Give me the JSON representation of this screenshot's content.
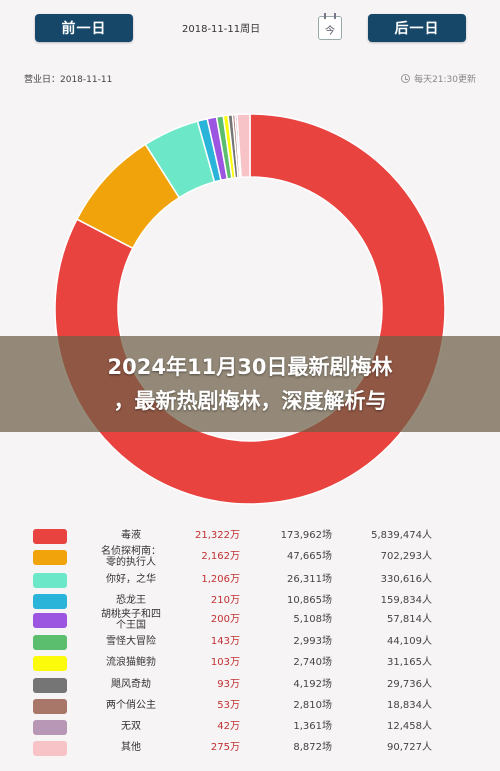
{
  "header": {
    "prev_label": "前一日",
    "next_label": "后一日",
    "current_date": "2018-11-11周日",
    "calendar_icon_text": "今"
  },
  "subheader": {
    "business_date": "营业日：2018-11-11",
    "update_time": "每天21:30更新"
  },
  "headline": {
    "line1": "2024年11月30日最新剧梅林",
    "line2": "，最新热剧梅林，深度解析与"
  },
  "chart_data": {
    "type": "pie",
    "donut": true,
    "start": "top",
    "direction": "clockwise",
    "categories": [
      "毒液",
      "名侦探柯南：零的执行人",
      "你好，之华",
      "恐龙王",
      "胡桃夹子和四个王国",
      "雪怪大冒险",
      "流浪猫鲍勃",
      "飓风奇劫",
      "两个俏公主",
      "无双",
      "其他"
    ],
    "values": [
      21322,
      2162,
      1206,
      210,
      200,
      143,
      103,
      93,
      53,
      42,
      275
    ],
    "unit": "万",
    "colors": [
      "#e8433f",
      "#f0a30a",
      "#6ce8c8",
      "#2bb4d9",
      "#9b55e0",
      "#5bbd6e",
      "#fbfb0a",
      "#757575",
      "#a8776a",
      "#b896b6",
      "#f7c3c7"
    ]
  },
  "legend": {
    "rows": [
      {
        "name": "毒液",
        "name_l1": "毒液",
        "name_l2": "",
        "box_office": "21,322万",
        "shows": "173,962场",
        "people": "5,839,474人",
        "color": "#e8433f"
      },
      {
        "name": "名侦探柯南：零的执行人",
        "name_l1": "名侦探柯南：",
        "name_l2": "零的执行人",
        "box_office": "2,162万",
        "shows": "47,665场",
        "people": "702,293人",
        "color": "#f0a30a"
      },
      {
        "name": "你好，之华",
        "name_l1": "你好，之华",
        "name_l2": "",
        "box_office": "1,206万",
        "shows": "26,311场",
        "people": "330,616人",
        "color": "#6ce8c8"
      },
      {
        "name": "恐龙王",
        "name_l1": "恐龙王",
        "name_l2": "",
        "box_office": "210万",
        "shows": "10,865场",
        "people": "159,834人",
        "color": "#2bb4d9"
      },
      {
        "name": "胡桃夹子和四个王国",
        "name_l1": "胡桃夹子和四",
        "name_l2": "个王国",
        "box_office": "200万",
        "shows": "5,108场",
        "people": "57,814人",
        "color": "#9b55e0"
      },
      {
        "name": "雪怪大冒险",
        "name_l1": "雪怪大冒险",
        "name_l2": "",
        "box_office": "143万",
        "shows": "2,993场",
        "people": "44,109人",
        "color": "#5bbd6e"
      },
      {
        "name": "流浪猫鲍勃",
        "name_l1": "流浪猫鲍勃",
        "name_l2": "",
        "box_office": "103万",
        "shows": "2,740场",
        "people": "31,165人",
        "color": "#fbfb0a"
      },
      {
        "name": "飓风奇劫",
        "name_l1": "飓风奇劫",
        "name_l2": "",
        "box_office": "93万",
        "shows": "4,192场",
        "people": "29,736人",
        "color": "#757575"
      },
      {
        "name": "两个俏公主",
        "name_l1": "两个俏公主",
        "name_l2": "",
        "box_office": "53万",
        "shows": "2,810场",
        "people": "18,834人",
        "color": "#a8776a"
      },
      {
        "name": "无双",
        "name_l1": "无双",
        "name_l2": "",
        "box_office": "42万",
        "shows": "1,361场",
        "people": "12,458人",
        "color": "#b896b6"
      },
      {
        "name": "其他",
        "name_l1": "其他",
        "name_l2": "",
        "box_office": "275万",
        "shows": "8,872场",
        "people": "90,727人",
        "color": "#f7c3c7"
      }
    ]
  }
}
